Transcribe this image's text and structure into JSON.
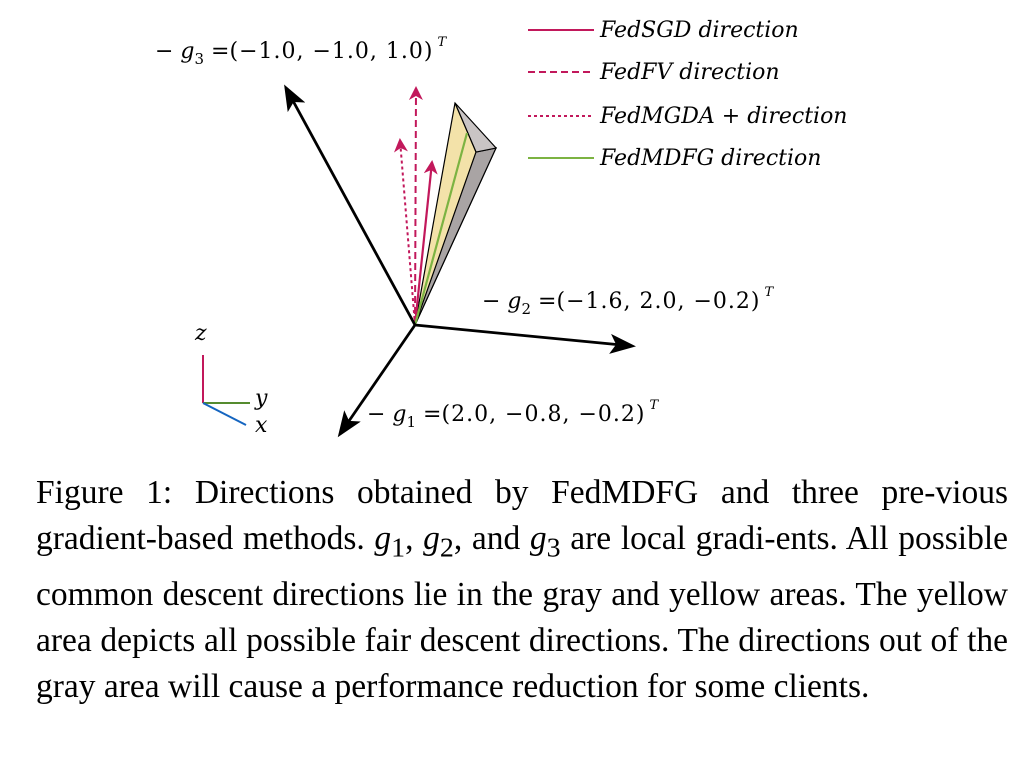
{
  "vectors": {
    "g3": {
      "prefix": "− g",
      "sub": "3",
      "eq": " =",
      "value": "(−1.0, −1.0, 1.0)",
      "sup": "T"
    },
    "g2": {
      "prefix": "− g",
      "sub": "2",
      "eq": " =",
      "value": "(−1.6, 2.0, −0.2)",
      "sup": "T"
    },
    "g1": {
      "prefix": "− g",
      "sub": "1",
      "eq": " =",
      "value": "(2.0, −0.8, −0.2)",
      "sup": "T"
    }
  },
  "axes": {
    "z": "z",
    "y": "y",
    "x": "x"
  },
  "legend": [
    {
      "label": "FedSGD direction",
      "color": "#c2185b",
      "style": "solid"
    },
    {
      "label": "FedFV direction",
      "color": "#c2185b",
      "style": "dashed"
    },
    {
      "label": "FedMGDA +  direction",
      "color": "#c2185b",
      "style": "dotted"
    },
    {
      "label": "FedMDFG direction",
      "color": "#7cb342",
      "style": "solid"
    }
  ],
  "colors": {
    "accent": "#c2185b",
    "fedmdfg": "#7cb342",
    "yellow_area": "#f3e2a9",
    "gray_area": "#a9a4a4",
    "axis_y": "#558b2f",
    "axis_x": "#1565c0"
  },
  "caption": {
    "t1": "Figure 1: Directions obtained by FedMDFG and three pre-vious gradient-based methods. ",
    "g1": "g",
    "s1": "1",
    "t2": ", ",
    "g2": "g",
    "s2": "2",
    "t3": ", and ",
    "g3": "g",
    "s3": "3",
    "t4": " are local gradi-ents. All possible common descent directions lie in the gray and yellow areas. The yellow area depicts all possible fair descent directions. The directions out of the gray area will cause a performance reduction for some clients."
  }
}
